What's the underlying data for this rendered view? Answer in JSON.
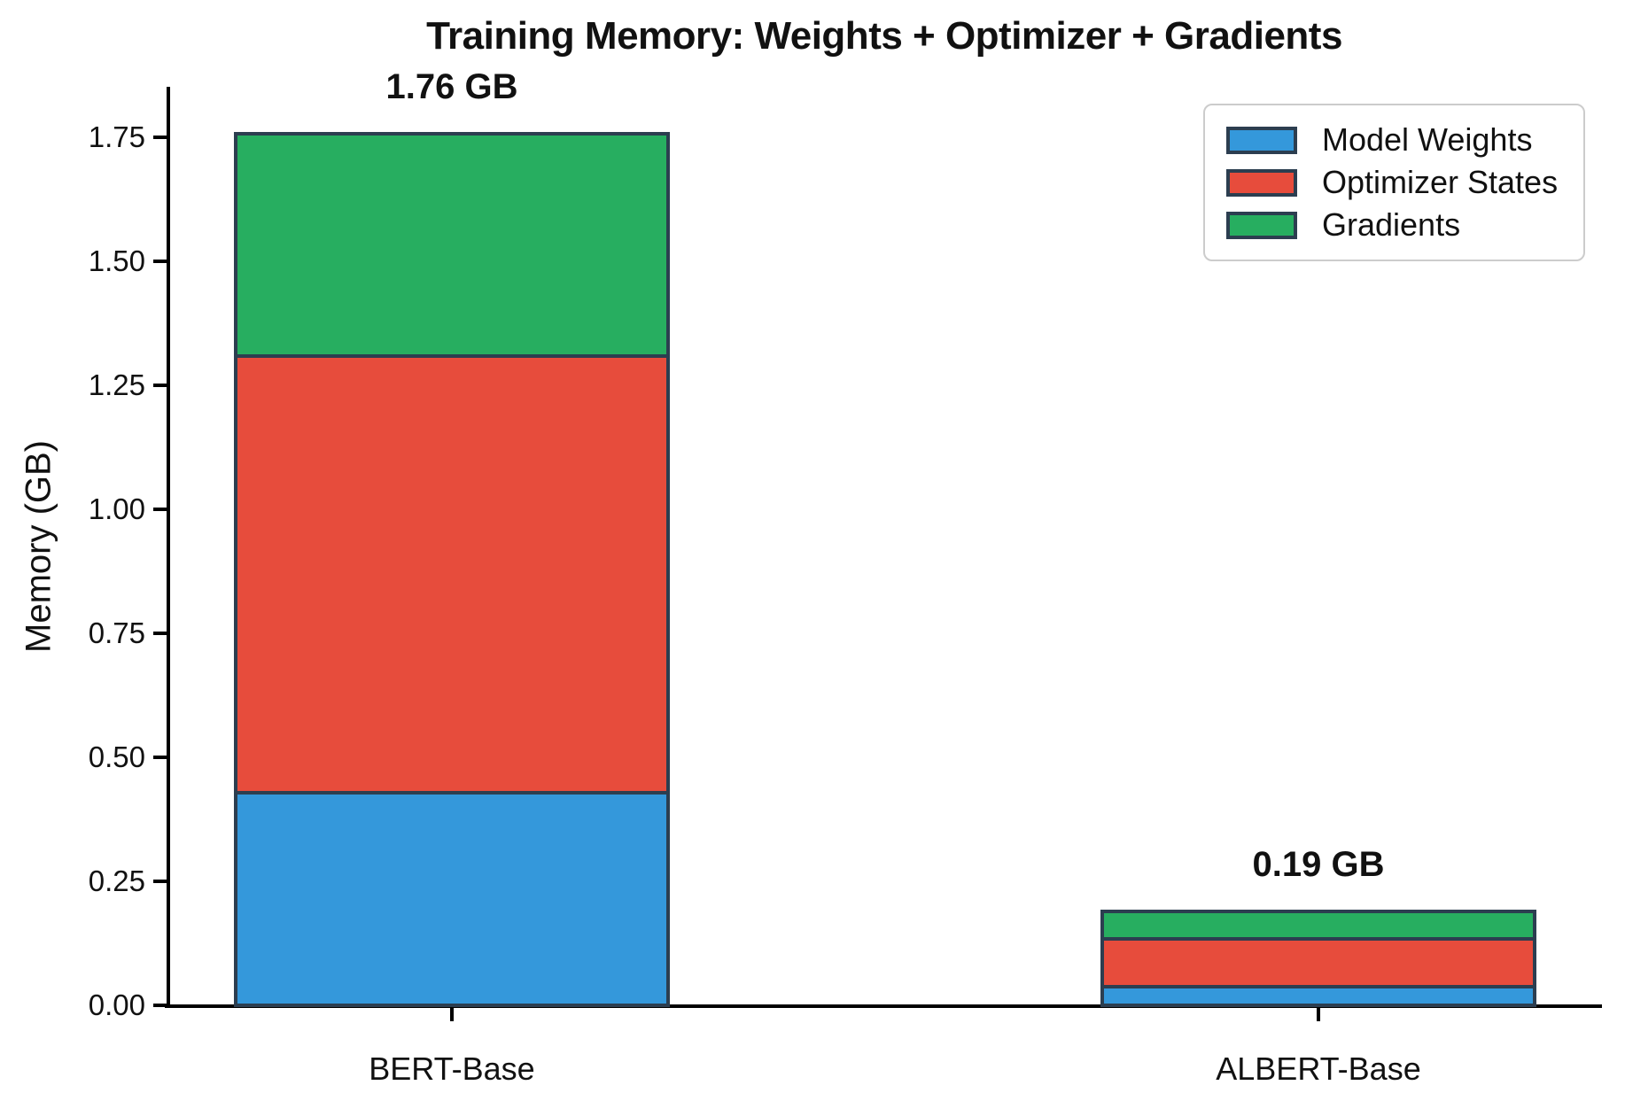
{
  "title": "Training Memory: Weights + Optimizer + Gradients",
  "chart_data": {
    "type": "bar",
    "stacked": true,
    "title": "Training Memory: Weights + Optimizer + Gradients",
    "ylabel": "Memory (GB)",
    "xlabel": "",
    "categories": [
      "BERT-Base",
      "ALBERT-Base"
    ],
    "series": [
      {
        "name": "Model Weights",
        "color": "#3498db",
        "values": [
          0.44,
          0.048
        ]
      },
      {
        "name": "Optimizer States",
        "color": "#e74c3c",
        "values": [
          0.88,
          0.096
        ]
      },
      {
        "name": "Gradients",
        "color": "#27ae60",
        "values": [
          0.44,
          0.048
        ]
      }
    ],
    "totals": [
      1.76,
      0.19
    ],
    "total_labels": [
      "1.76 GB",
      "0.19 GB"
    ],
    "yticks": [
      0.0,
      0.25,
      0.5,
      0.75,
      1.0,
      1.25,
      1.5,
      1.75
    ],
    "ytick_labels": [
      "0.00",
      "0.25",
      "0.50",
      "0.75",
      "1.00",
      "1.25",
      "1.50",
      "1.75"
    ],
    "ylim": [
      0,
      1.86
    ],
    "grid": false,
    "legend_position": "upper right",
    "bar_edge_color": "#2c3e50",
    "axis_color": "#000000",
    "background_color": "#ffffff"
  }
}
